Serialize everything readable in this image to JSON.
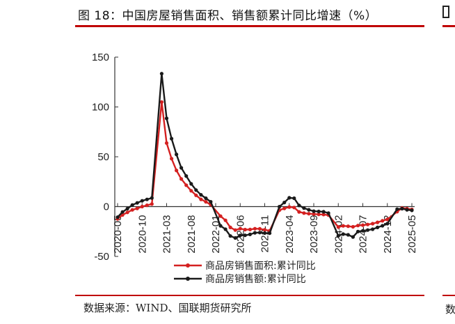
{
  "header": {
    "title": "图 18：中国房屋销售面积、销售额累计同比增速（%）",
    "source": "数据来源：WIND、国联期货研究所",
    "right_fragment_bottom": "数"
  },
  "colors": {
    "accent": "#c00000",
    "series_area": "#d42020",
    "series_sales": "#1a1a1a"
  },
  "chart_data": {
    "type": "line",
    "title": "",
    "xlabel": "",
    "ylabel": "",
    "ylim": [
      -50,
      150
    ],
    "yticks": [
      -50,
      0,
      50,
      100,
      150
    ],
    "xticks": [
      "2020-05",
      "2020-10",
      "2021-03",
      "2021-08",
      "2022-01",
      "2022-06",
      "2022-11",
      "2023-04",
      "2023-09",
      "2024-02",
      "2024-07",
      "2024-12",
      "2025-05"
    ],
    "x": [
      "2020-05",
      "2020-06",
      "2020-07",
      "2020-08",
      "2020-09",
      "2020-10",
      "2020-11",
      "2020-12",
      "2021-02",
      "2021-03",
      "2021-04",
      "2021-05",
      "2021-06",
      "2021-07",
      "2021-08",
      "2021-09",
      "2021-10",
      "2021-11",
      "2021-12",
      "2022-02",
      "2022-03",
      "2022-04",
      "2022-05",
      "2022-06",
      "2022-07",
      "2022-08",
      "2022-09",
      "2022-10",
      "2022-11",
      "2022-12",
      "2023-02",
      "2023-03",
      "2023-04",
      "2023-05",
      "2023-06",
      "2023-07",
      "2023-08",
      "2023-09",
      "2023-10",
      "2023-11",
      "2023-12",
      "2024-02",
      "2024-03",
      "2024-04",
      "2024-05",
      "2024-06",
      "2024-07",
      "2024-08",
      "2024-09",
      "2024-10",
      "2024-11",
      "2024-12",
      "2025-02",
      "2025-03",
      "2025-04",
      "2025-05"
    ],
    "legend_position": "bottom",
    "series": [
      {
        "name": "商品房销售面积:累计同比",
        "color": "#d42020",
        "values": [
          -12.3,
          -8.4,
          -5.8,
          -3.3,
          -1.8,
          0.0,
          1.3,
          2.6,
          104.9,
          63.8,
          48.1,
          36.3,
          27.7,
          21.5,
          15.9,
          11.3,
          7.3,
          4.8,
          1.9,
          -9.6,
          -13.8,
          -20.9,
          -23.6,
          -22.2,
          -23.1,
          -23.0,
          -22.2,
          -22.3,
          -23.3,
          -24.3,
          -3.6,
          -1.8,
          -0.4,
          -0.9,
          -5.3,
          -6.5,
          -7.1,
          -7.5,
          -7.8,
          -8.0,
          -8.5,
          -20.5,
          -19.4,
          -19.7,
          -20.3,
          -19.0,
          -18.6,
          -18.0,
          -17.1,
          -15.8,
          -14.3,
          -12.9,
          -5.1,
          -1.4,
          -2.1,
          -2.9
        ]
      },
      {
        "name": "商品房销售额:累计同比",
        "color": "#1a1a1a",
        "values": [
          -10.6,
          -5.4,
          -2.1,
          1.6,
          3.7,
          5.8,
          7.2,
          8.7,
          133.4,
          88.5,
          68.2,
          52.4,
          38.9,
          30.7,
          22.8,
          16.6,
          11.8,
          8.4,
          4.8,
          -19.3,
          -22.7,
          -29.5,
          -31.5,
          -28.9,
          -28.8,
          -27.9,
          -26.3,
          -26.1,
          -26.6,
          -26.7,
          -0.1,
          4.1,
          8.8,
          8.4,
          1.1,
          -1.5,
          -3.2,
          -4.6,
          -4.9,
          -5.2,
          -6.5,
          -29.3,
          -27.6,
          -28.3,
          -30.5,
          -25.0,
          -24.3,
          -23.6,
          -22.7,
          -20.9,
          -19.2,
          -17.1,
          -2.6,
          -2.1,
          -3.2,
          -3.8
        ]
      }
    ]
  }
}
